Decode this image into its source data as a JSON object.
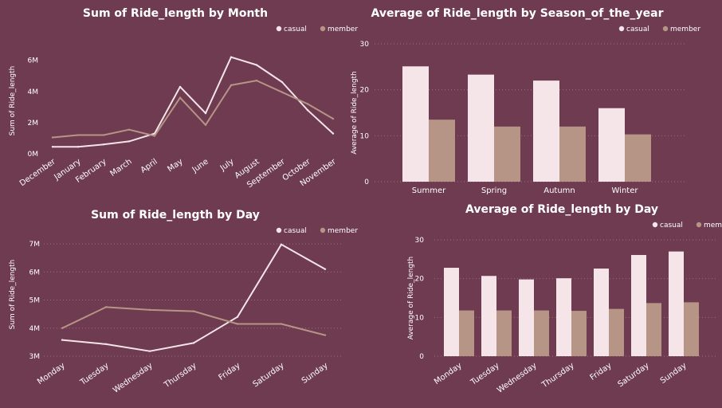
{
  "colors": {
    "background": "#6e3b50",
    "casual": "#f5e4e8",
    "member": "#b69486",
    "grid": "#9a6d80",
    "text": "#ffffff"
  },
  "chart_data": [
    {
      "id": "month",
      "type": "line",
      "title": "Sum of Ride_length by Month",
      "xlabel": "",
      "ylabel": "Sum of Ride_length",
      "ylim": [
        0,
        6.8
      ],
      "yticks": [
        0,
        2,
        4,
        6
      ],
      "ytick_labels": [
        "0M",
        "2M",
        "4M",
        "6M"
      ],
      "grid": false,
      "legend": "top-right",
      "categories": [
        "December",
        "January",
        "February",
        "March",
        "April",
        "May",
        "June",
        "July",
        "August",
        "September",
        "October",
        "November"
      ],
      "series": [
        {
          "name": "casual",
          "values": [
            0.45,
            0.45,
            0.6,
            0.8,
            1.3,
            4.3,
            2.6,
            6.2,
            5.7,
            4.6,
            2.8,
            1.3
          ]
        },
        {
          "name": "member",
          "values": [
            1.05,
            1.2,
            1.2,
            1.55,
            1.15,
            3.6,
            1.85,
            4.4,
            4.7,
            3.95,
            3.2,
            2.25
          ]
        }
      ]
    },
    {
      "id": "season",
      "type": "bar",
      "title": "Average of Ride_length by Season_of_the_year",
      "xlabel": "",
      "ylabel": "Average of Ride_length",
      "ylim": [
        0,
        30
      ],
      "yticks": [
        0,
        10,
        20,
        30
      ],
      "ytick_labels": [
        "0",
        "10",
        "20",
        "30"
      ],
      "grid": true,
      "legend": "top-right",
      "categories": [
        "Summer",
        "Spring",
        "Autumn",
        "Winter"
      ],
      "series": [
        {
          "name": "casual",
          "values": [
            25.1,
            23.3,
            22.0,
            16.0
          ]
        },
        {
          "name": "member",
          "values": [
            13.5,
            12.0,
            12.0,
            10.3
          ]
        }
      ]
    },
    {
      "id": "day_sum",
      "type": "line",
      "title": "Sum of Ride_length by Day",
      "xlabel": "",
      "ylabel": "Sum of Ride_length",
      "ylim": [
        3,
        7.4
      ],
      "yticks": [
        3,
        4,
        5,
        6,
        7
      ],
      "ytick_labels": [
        "3M",
        "4M",
        "5M",
        "6M",
        "7M"
      ],
      "grid": true,
      "legend": "top-right",
      "categories": [
        "Monday",
        "Tuesday",
        "Wednesday",
        "Thursday",
        "Friday",
        "Saturday",
        "Sunday"
      ],
      "series": [
        {
          "name": "casual",
          "values": [
            3.58,
            3.43,
            3.18,
            3.47,
            4.4,
            6.98,
            6.1
          ]
        },
        {
          "name": "member",
          "values": [
            4.0,
            4.75,
            4.65,
            4.6,
            4.15,
            4.15,
            3.75
          ]
        }
      ]
    },
    {
      "id": "day_avg",
      "type": "bar",
      "title": "Average of Ride_length by Day",
      "xlabel": "",
      "ylabel": "Average of Ride_length",
      "ylim": [
        0,
        30
      ],
      "yticks": [
        0,
        10,
        20,
        30
      ],
      "ytick_labels": [
        "0",
        "10",
        "20",
        "30"
      ],
      "grid": true,
      "legend": "top-right",
      "categories": [
        "Monday",
        "Tuesday",
        "Wednesday",
        "Thursday",
        "Friday",
        "Saturday",
        "Sunday"
      ],
      "series": [
        {
          "name": "casual",
          "values": [
            22.8,
            20.7,
            19.8,
            20.1,
            22.6,
            26.1,
            27.0
          ]
        },
        {
          "name": "member",
          "values": [
            11.8,
            11.8,
            11.8,
            11.7,
            12.2,
            13.7,
            13.9
          ]
        }
      ]
    }
  ]
}
